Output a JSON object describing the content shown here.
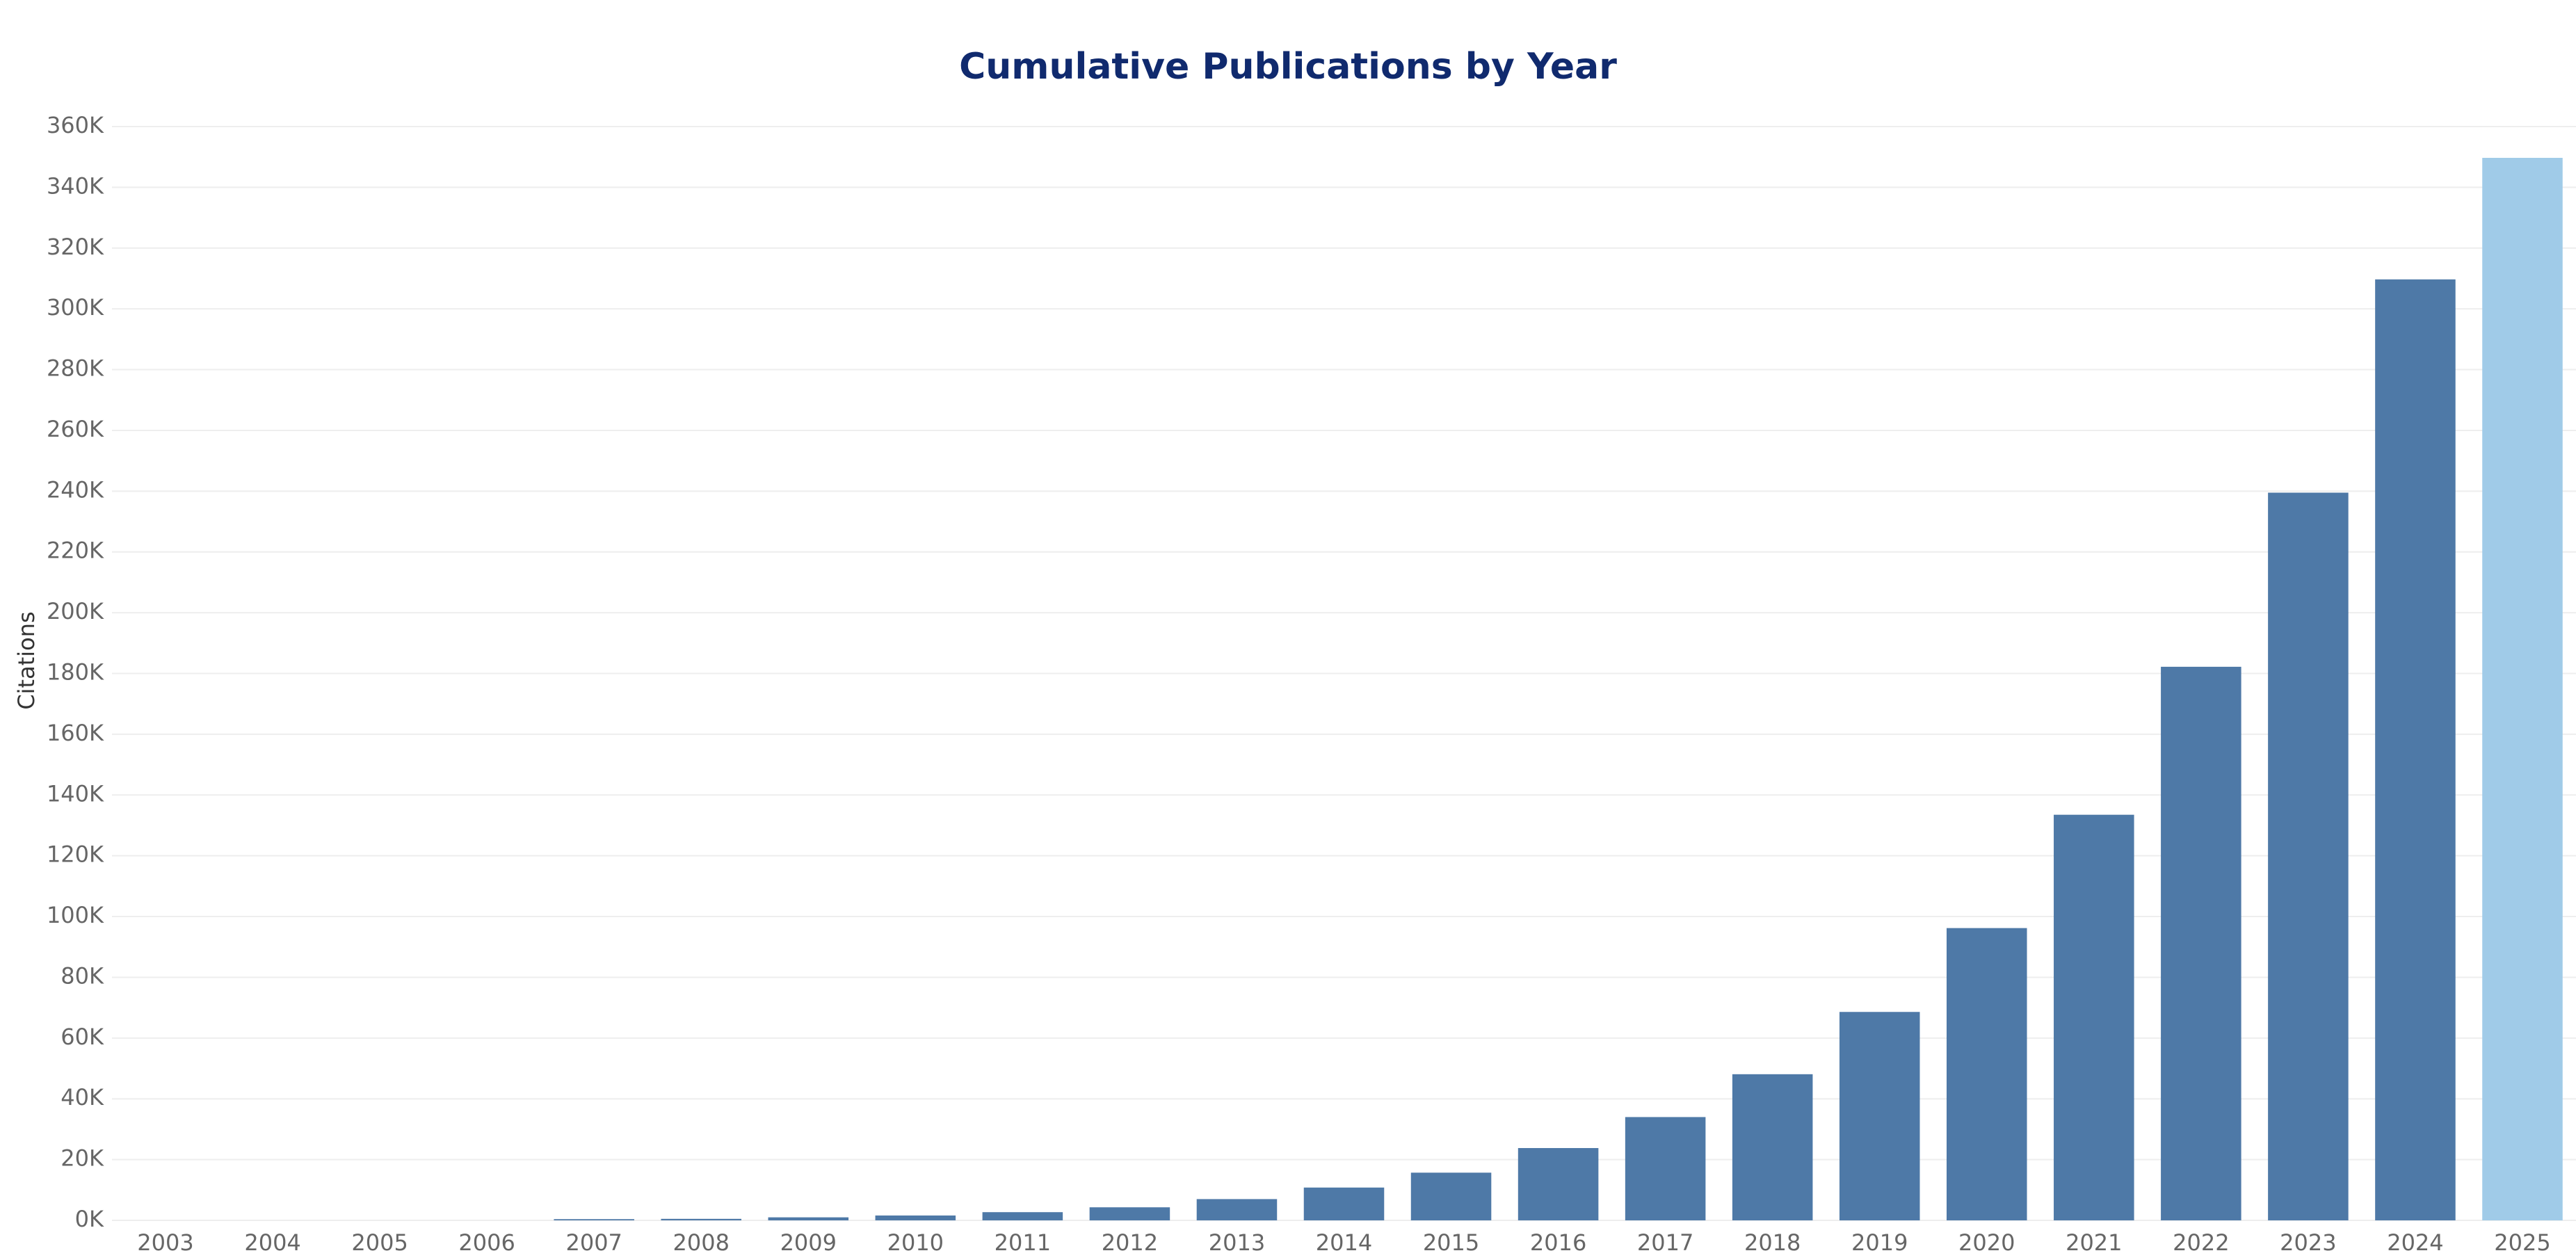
{
  "chart_data": {
    "type": "bar",
    "title": "Cumulative Publications by Year",
    "y_label": "Citations",
    "categories": [
      "2003",
      "2004",
      "2005",
      "2006",
      "2007",
      "2008",
      "2009",
      "2010",
      "2011",
      "2012",
      "2013",
      "2014",
      "2015",
      "2016",
      "2017",
      "2018",
      "2019",
      "2020",
      "2021",
      "2022",
      "2023",
      "2024",
      "2025"
    ],
    "values": [
      0,
      0,
      0,
      0,
      400,
      500,
      1000,
      1600,
      2700,
      4300,
      7000,
      10800,
      15700,
      23800,
      34000,
      48100,
      68600,
      96200,
      133500,
      182200,
      239500,
      309700,
      349700
    ],
    "colors": [
      "#4e79a7",
      "#4e79a7",
      "#4e79a7",
      "#4e79a7",
      "#4e79a7",
      "#4e79a7",
      "#4e79a7",
      "#4e79a7",
      "#4e79a7",
      "#4e79a7",
      "#4e79a7",
      "#4e79a7",
      "#4e79a7",
      "#4e79a7",
      "#4e79a7",
      "#4e79a7",
      "#4e79a7",
      "#4e79a7",
      "#4e79a7",
      "#4e79a7",
      "#4e79a7",
      "#4e79a7",
      "#a0cbe8"
    ],
    "ylim": [
      0,
      360000
    ],
    "yticks": [
      {
        "value": 0,
        "label": "0K"
      },
      {
        "value": 20000,
        "label": "20K"
      },
      {
        "value": 40000,
        "label": "40K"
      },
      {
        "value": 60000,
        "label": "60K"
      },
      {
        "value": 80000,
        "label": "80K"
      },
      {
        "value": 100000,
        "label": "100K"
      },
      {
        "value": 120000,
        "label": "120K"
      },
      {
        "value": 140000,
        "label": "140K"
      },
      {
        "value": 160000,
        "label": "160K"
      },
      {
        "value": 180000,
        "label": "180K"
      },
      {
        "value": 200000,
        "label": "200K"
      },
      {
        "value": 220000,
        "label": "220K"
      },
      {
        "value": 240000,
        "label": "240K"
      },
      {
        "value": 260000,
        "label": "260K"
      },
      {
        "value": 280000,
        "label": "280K"
      },
      {
        "value": 300000,
        "label": "300K"
      },
      {
        "value": 320000,
        "label": "320K"
      },
      {
        "value": 340000,
        "label": "340K"
      },
      {
        "value": 360000,
        "label": "360K"
      }
    ],
    "grid": true
  }
}
